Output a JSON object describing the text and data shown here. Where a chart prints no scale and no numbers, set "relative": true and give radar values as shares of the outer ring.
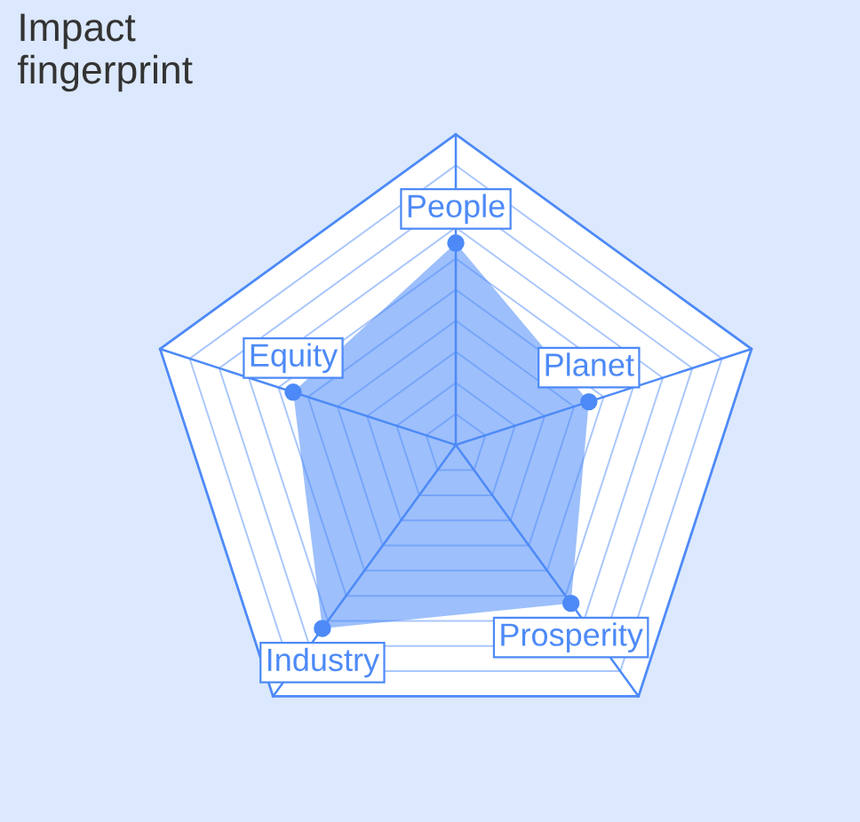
{
  "chart_data": {
    "type": "radar",
    "title": "Impact\nfingerprint",
    "relative": true,
    "grid": true,
    "marker": "circle",
    "categories": [
      "People",
      "Planet",
      "Prosperity",
      "Industry",
      "Equity"
    ],
    "series": [
      {
        "color": "#4d8af7",
        "values": [
          0.65,
          0.45,
          0.63,
          0.73,
          0.55
        ]
      }
    ]
  }
}
